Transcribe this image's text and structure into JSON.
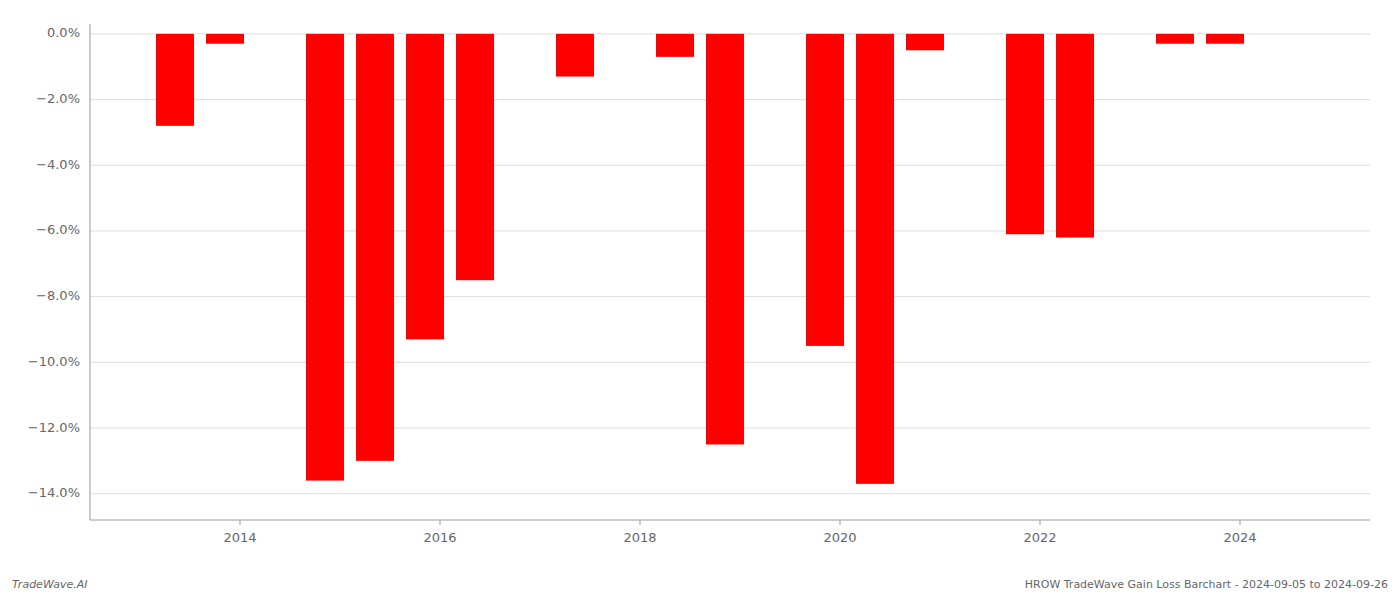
{
  "chart_data": {
    "type": "bar",
    "x": [
      2013.35,
      2013.85,
      2014.85,
      2015.35,
      2015.85,
      2016.35,
      2017.35,
      2018.35,
      2018.85,
      2019.85,
      2020.35,
      2020.85,
      2021.85,
      2022.35,
      2023.35,
      2023.85
    ],
    "values": [
      -2.8,
      -0.3,
      -13.6,
      -13.0,
      -9.3,
      -7.5,
      -1.3,
      -0.7,
      -12.5,
      -9.5,
      -13.7,
      -0.5,
      -6.1,
      -6.2,
      -0.3,
      -0.3
    ],
    "color": "#ff0000",
    "xlim": [
      2012.5,
      2025.3
    ],
    "xticks": [
      2014,
      2016,
      2018,
      2020,
      2022,
      2024
    ],
    "ylim": [
      -14.8,
      0.3
    ],
    "yticks": [
      {
        "value": 0.0,
        "label": "0.0%"
      },
      {
        "value": -2.0,
        "label": "−2.0%"
      },
      {
        "value": -4.0,
        "label": "−4.0%"
      },
      {
        "value": -6.0,
        "label": "−6.0%"
      },
      {
        "value": -8.0,
        "label": "−8.0%"
      },
      {
        "value": -10.0,
        "label": "−10.0%"
      },
      {
        "value": -12.0,
        "label": "−12.0%"
      },
      {
        "value": -14.0,
        "label": "−14.0%"
      }
    ],
    "grid": true,
    "annotations": [
      "TradeWave.AI",
      "HROW TradeWave Gain Loss Barchart - 2024-09-05 to 2024-09-26"
    ]
  }
}
